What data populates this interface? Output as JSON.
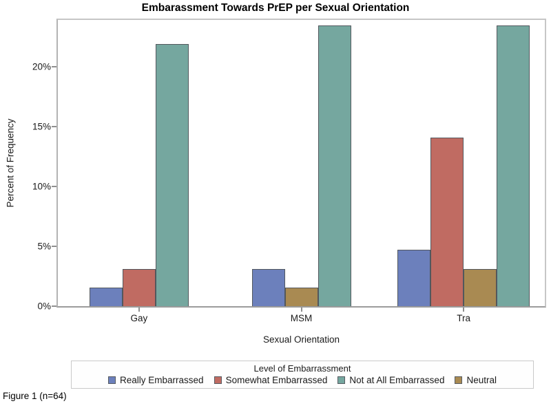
{
  "figure": {
    "caption": "Figure 1 (n=64)"
  },
  "chart_data": {
    "type": "bar",
    "title": "Embarassment Towards PrEP per Sexual Orientation",
    "categories": [
      "Gay",
      "MSM",
      "Tra"
    ],
    "series": [
      {
        "name": "Really Embarrassed",
        "color": "#6C80BC",
        "values": [
          1.56,
          3.13,
          4.69
        ]
      },
      {
        "name": "Somewhat Embarrassed",
        "color": "#C06B62",
        "values": [
          3.13,
          0,
          14.06
        ]
      },
      {
        "name": "Neutral",
        "color": "#A98A52",
        "values": [
          0,
          1.56,
          3.13
        ]
      },
      {
        "name": "Not at All Embarrassed",
        "color": "#75A79F",
        "values": [
          21.88,
          23.44,
          23.44
        ]
      }
    ],
    "xlabel": "Sexual Orientation",
    "ylabel": "Percent of Frequency",
    "ylim": [
      0,
      23.9
    ],
    "yticks": [
      {
        "value": 0,
        "label": "0%"
      },
      {
        "value": 5,
        "label": "5%"
      },
      {
        "value": 10,
        "label": "10%"
      },
      {
        "value": 15,
        "label": "15%"
      },
      {
        "value": 20,
        "label": "20%"
      }
    ],
    "grid": false,
    "legend_position": "bottom",
    "bar_outline_color": "#52575d"
  },
  "legend": {
    "title": "Level of Embarrassment",
    "items": [
      {
        "label": "Really Embarrassed",
        "color": "#6C80BC"
      },
      {
        "label": "Somewhat Embarrassed",
        "color": "#C06B62"
      },
      {
        "label": "Not at All Embarrassed",
        "color": "#75A79F"
      },
      {
        "label": "Neutral",
        "color": "#A98A52"
      }
    ]
  }
}
